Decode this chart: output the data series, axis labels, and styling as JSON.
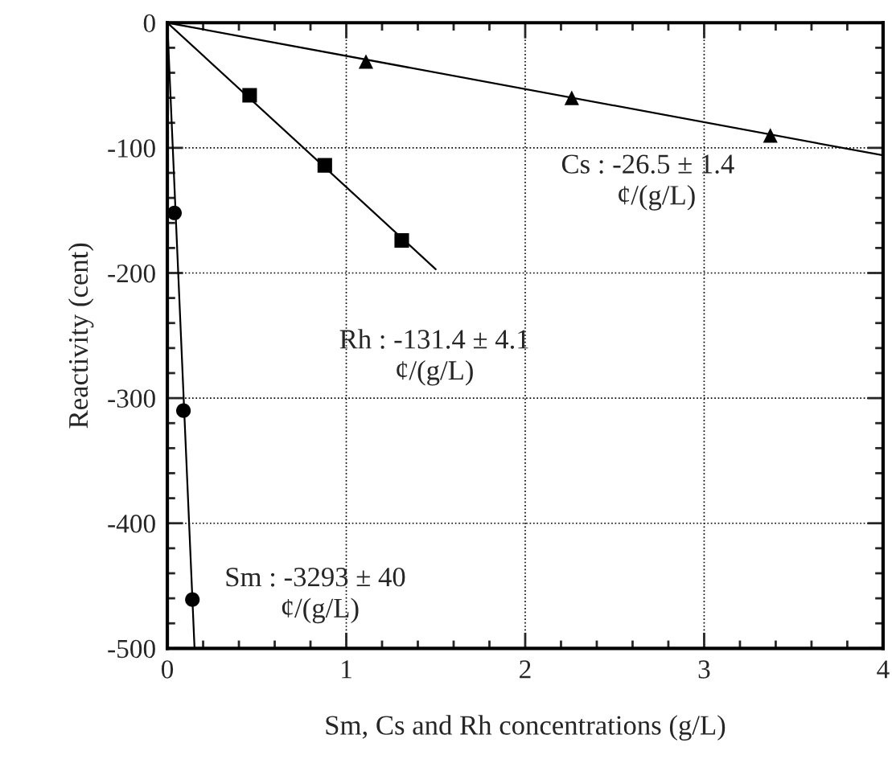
{
  "chart_data": {
    "type": "scatter",
    "xlabel": "Sm, Cs and Rh concentrations (g/L)",
    "ylabel": "Reactivity (cent)",
    "xlim": [
      0,
      4
    ],
    "ylim": [
      -500,
      0
    ],
    "xticks": [
      0,
      1,
      2,
      3,
      4
    ],
    "yticks": [
      -500,
      -400,
      -300,
      -200,
      -100,
      0
    ],
    "grid": true,
    "series": [
      {
        "marker": "triangle",
        "color": "#000000",
        "x": [
          1.11,
          2.26,
          3.37
        ],
        "values": [
          -31,
          -60,
          -90
        ]
      },
      {
        "marker": "square",
        "color": "#000000",
        "x": [
          0.46,
          0.88,
          1.31
        ],
        "values": [
          -58,
          -114,
          -174
        ]
      },
      {
        "marker": "circle",
        "color": "#000000",
        "x": [
          0.04,
          0.09,
          0.14
        ],
        "values": [
          -152,
          -310,
          -461
        ]
      },
      {
        "type": "line",
        "marker": "none",
        "line_style": "solid",
        "color": "#000000",
        "x": [
          0,
          4
        ],
        "values": [
          0,
          -106
        ]
      },
      {
        "type": "line",
        "marker": "none",
        "line_style": "solid",
        "color": "#000000",
        "x": [
          0,
          1.5
        ],
        "values": [
          0,
          -197
        ]
      },
      {
        "type": "line",
        "marker": "none",
        "line_style": "solid",
        "color": "#000000",
        "x": [
          0,
          0.152
        ],
        "values": [
          0,
          -500
        ]
      }
    ],
    "annotations": [
      "Cs : -26.5 ± 1.4\n        ¢/(g/L)",
      "Rh : -131.4 ± 4.1\n        ¢/(g/L)",
      "Sm : -3293 ± 40\n        ¢/(g/L)"
    ]
  }
}
